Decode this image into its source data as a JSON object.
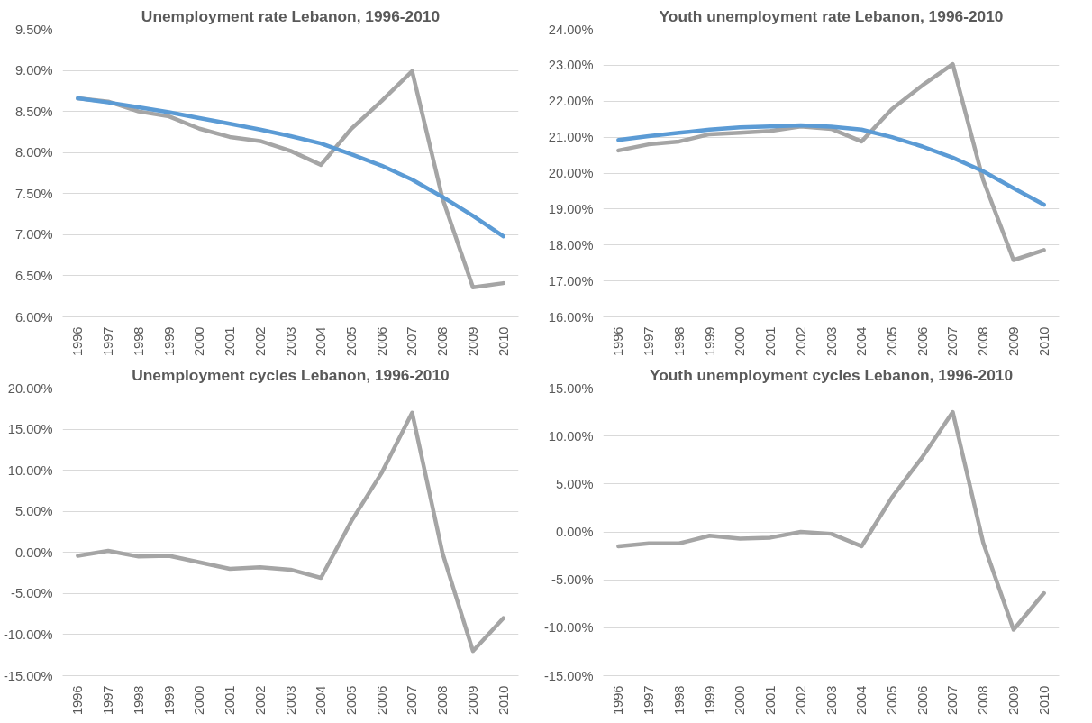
{
  "chart_data": [
    {
      "type": "line",
      "title": "Unemployment rate Lebanon, 1996-2010",
      "categories": [
        "1996",
        "1997",
        "1998",
        "1999",
        "2000",
        "2001",
        "2002",
        "2003",
        "2004",
        "2005",
        "2006",
        "2007",
        "2008",
        "2009",
        "2010"
      ],
      "series": [
        {
          "color": "#a5a5a5",
          "values": [
            8.66,
            8.62,
            8.5,
            8.44,
            8.29,
            8.19,
            8.14,
            8.02,
            7.85,
            8.29,
            8.63,
            8.99,
            7.44,
            6.36,
            6.41
          ]
        },
        {
          "color": "#5b9bd5",
          "values": [
            8.66,
            8.61,
            8.55,
            8.49,
            8.42,
            8.35,
            8.28,
            8.2,
            8.11,
            7.98,
            7.84,
            7.67,
            7.46,
            7.23,
            6.98
          ]
        }
      ],
      "ylim": [
        6.0,
        9.5
      ],
      "yticks": [
        {
          "value": 6.0,
          "label": "6.00%"
        },
        {
          "value": 6.5,
          "label": "6.50%"
        },
        {
          "value": 7.0,
          "label": "7.00%"
        },
        {
          "value": 7.5,
          "label": "7.50%"
        },
        {
          "value": 8.0,
          "label": "8.00%"
        },
        {
          "value": 8.5,
          "label": "8.50%"
        },
        {
          "value": 9.0,
          "label": "9.00%"
        },
        {
          "value": 9.5,
          "label": "9.50%"
        }
      ],
      "grid": "y",
      "marker": "none",
      "line_style": "solid"
    },
    {
      "type": "line",
      "title": "Youth unemployment rate Lebanon, 1996-2010",
      "categories": [
        "1996",
        "1997",
        "1998",
        "1999",
        "2000",
        "2001",
        "2002",
        "2003",
        "2004",
        "2005",
        "2006",
        "2007",
        "2008",
        "2009",
        "2010"
      ],
      "series": [
        {
          "color": "#a5a5a5",
          "values": [
            20.63,
            20.8,
            20.88,
            21.08,
            21.12,
            21.17,
            21.3,
            21.23,
            20.88,
            21.78,
            22.44,
            23.03,
            19.81,
            17.58,
            17.86
          ]
        },
        {
          "color": "#5b9bd5",
          "values": [
            20.92,
            21.03,
            21.12,
            21.21,
            21.27,
            21.3,
            21.33,
            21.29,
            21.21,
            21.0,
            20.74,
            20.43,
            20.05,
            19.58,
            19.12
          ]
        }
      ],
      "ylim": [
        16.0,
        24.0
      ],
      "yticks": [
        {
          "value": 16.0,
          "label": "16.00%"
        },
        {
          "value": 17.0,
          "label": "17.00%"
        },
        {
          "value": 18.0,
          "label": "18.00%"
        },
        {
          "value": 19.0,
          "label": "19.00%"
        },
        {
          "value": 20.0,
          "label": "20.00%"
        },
        {
          "value": 21.0,
          "label": "21.00%"
        },
        {
          "value": 22.0,
          "label": "22.00%"
        },
        {
          "value": 23.0,
          "label": "23.00%"
        },
        {
          "value": 24.0,
          "label": "24.00%"
        }
      ],
      "grid": "y",
      "marker": "none",
      "line_style": "solid"
    },
    {
      "type": "line",
      "title": "Unemployment cycles Lebanon, 1996-2010",
      "categories": [
        "1996",
        "1997",
        "1998",
        "1999",
        "2000",
        "2001",
        "2002",
        "2003",
        "2004",
        "2005",
        "2006",
        "2007",
        "2008",
        "2009",
        "2010"
      ],
      "series": [
        {
          "color": "#a5a5a5",
          "values": [
            -0.4,
            0.2,
            -0.5,
            -0.4,
            -1.2,
            -2.0,
            -1.8,
            -2.1,
            -3.1,
            3.8,
            9.7,
            17.0,
            -0.1,
            -12.0,
            -8.0
          ]
        }
      ],
      "ylim": [
        -15.0,
        20.0
      ],
      "yticks": [
        {
          "value": -15.0,
          "label": "-15.00%"
        },
        {
          "value": -10.0,
          "label": "-10.00%"
        },
        {
          "value": -5.0,
          "label": "-5.00%"
        },
        {
          "value": 0.0,
          "label": "0.00%"
        },
        {
          "value": 5.0,
          "label": "5.00%"
        },
        {
          "value": 10.0,
          "label": "10.00%"
        },
        {
          "value": 15.0,
          "label": "15.00%"
        },
        {
          "value": 20.0,
          "label": "20.00%"
        }
      ],
      "grid": "y",
      "marker": "none",
      "line_style": "solid"
    },
    {
      "type": "line",
      "title": "Youth unemployment cycles Lebanon, 1996-2010",
      "categories": [
        "1996",
        "1997",
        "1998",
        "1999",
        "2000",
        "2001",
        "2002",
        "2003",
        "2004",
        "2005",
        "2006",
        "2007",
        "2008",
        "2009",
        "2010"
      ],
      "series": [
        {
          "color": "#a5a5a5",
          "values": [
            -1.5,
            -1.2,
            -1.2,
            -0.4,
            -0.7,
            -0.6,
            0.0,
            -0.2,
            -1.5,
            3.6,
            7.8,
            12.5,
            -1.1,
            -10.2,
            -6.4
          ]
        }
      ],
      "ylim": [
        -15.0,
        15.0
      ],
      "yticks": [
        {
          "value": -15.0,
          "label": "-15.00%"
        },
        {
          "value": -10.0,
          "label": "-10.00%"
        },
        {
          "value": -5.0,
          "label": "-5.00%"
        },
        {
          "value": 0.0,
          "label": "0.00%"
        },
        {
          "value": 5.0,
          "label": "5.00%"
        },
        {
          "value": 10.0,
          "label": "10.00%"
        },
        {
          "value": 15.0,
          "label": "15.00%"
        }
      ],
      "grid": "y",
      "marker": "none",
      "line_style": "solid"
    }
  ]
}
